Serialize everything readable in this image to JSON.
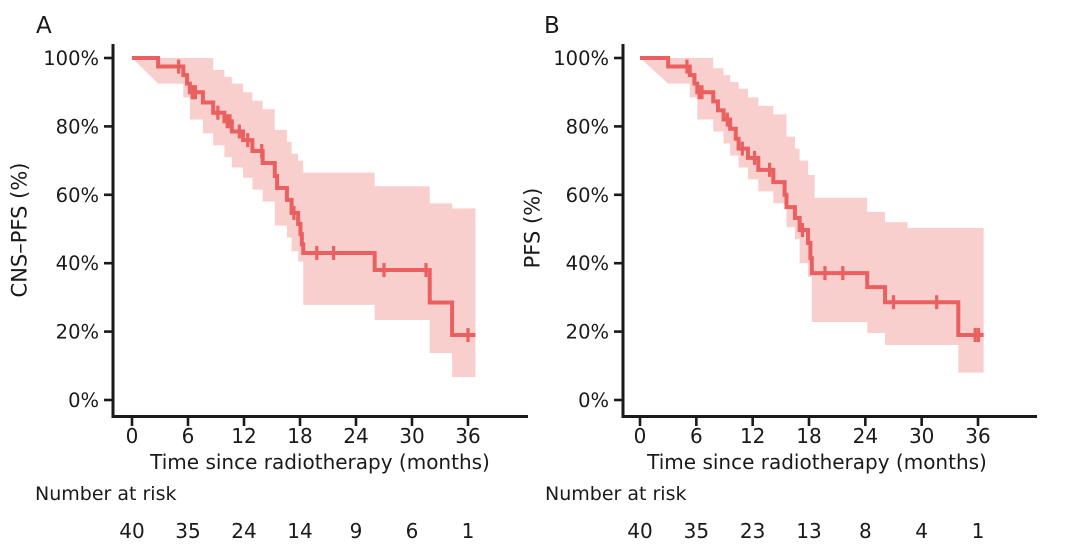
{
  "figure": {
    "background": "#ffffff"
  },
  "colors": {
    "curve": "#ea5f5f",
    "band": "#f9cfcd",
    "axis": "#1a1a1a",
    "text": "#1a1a1a"
  },
  "chart_data": [
    {
      "type": "line",
      "subtype": "kaplan-meier-step-with-confidence-band",
      "panel_label": "A",
      "ylabel": "CNS–PFS (%)",
      "xlabel": "Time since radiotherapy (months)",
      "xticks": [
        0,
        6,
        12,
        18,
        24,
        30,
        36
      ],
      "ytick_values": [
        0,
        20,
        40,
        60,
        80,
        100
      ],
      "ytick_labels": [
        "0%",
        "20%",
        "40%",
        "60%",
        "80%",
        "100%"
      ],
      "xlim": [
        0,
        42
      ],
      "ylim": [
        0,
        100
      ],
      "x_end": 36.8,
      "survival_steps": [
        [
          0,
          100
        ],
        [
          2.8,
          97.5
        ],
        [
          5.5,
          95
        ],
        [
          5.9,
          92.5
        ],
        [
          6.2,
          90
        ],
        [
          7.6,
          87
        ],
        [
          8.7,
          84
        ],
        [
          9.9,
          81.5
        ],
        [
          10.7,
          78.5
        ],
        [
          11.9,
          76
        ],
        [
          12.9,
          72.8
        ],
        [
          14.0,
          69.3
        ],
        [
          15.3,
          65.5
        ],
        [
          15.55,
          62
        ],
        [
          16.6,
          58.5
        ],
        [
          17.1,
          54.7
        ],
        [
          17.8,
          51.5
        ],
        [
          18.05,
          48.5
        ],
        [
          18.2,
          45.5
        ],
        [
          18.35,
          43
        ],
        [
          26.0,
          38
        ],
        [
          31.9,
          28.5
        ],
        [
          34.3,
          19
        ]
      ],
      "censor_marks": [
        [
          5.0,
          97.5
        ],
        [
          6.45,
          90
        ],
        [
          6.62,
          90
        ],
        [
          6.8,
          90
        ],
        [
          9.2,
          84
        ],
        [
          10.2,
          81.5
        ],
        [
          10.5,
          81.5
        ],
        [
          11.5,
          78.5
        ],
        [
          12.4,
          76
        ],
        [
          13.9,
          72.8
        ],
        [
          17.35,
          54.7
        ],
        [
          19.8,
          43
        ],
        [
          21.6,
          43
        ],
        [
          27.0,
          38
        ],
        [
          31.5,
          38
        ],
        [
          36.0,
          19
        ]
      ],
      "ci_upper_steps": [
        [
          0,
          100
        ],
        [
          8.7,
          96.5
        ],
        [
          9.9,
          94.5
        ],
        [
          10.7,
          92.5
        ],
        [
          11.9,
          90
        ],
        [
          12.9,
          87.5
        ],
        [
          14.0,
          85
        ],
        [
          15.3,
          79
        ],
        [
          16.6,
          75.5
        ],
        [
          17.1,
          72
        ],
        [
          17.8,
          70
        ],
        [
          18.35,
          66.5
        ],
        [
          26.0,
          62.5
        ],
        [
          31.9,
          57.5
        ],
        [
          34.3,
          56
        ]
      ],
      "ci_lower_steps": [
        [
          2.8,
          92.5
        ],
        [
          5.5,
          88.5
        ],
        [
          6.2,
          82
        ],
        [
          7.6,
          78
        ],
        [
          8.7,
          74.5
        ],
        [
          9.9,
          71
        ],
        [
          10.7,
          68
        ],
        [
          11.9,
          65
        ],
        [
          12.9,
          61.5
        ],
        [
          14.0,
          58
        ],
        [
          15.3,
          51
        ],
        [
          16.6,
          47.5
        ],
        [
          17.1,
          43.5
        ],
        [
          17.8,
          40.5
        ],
        [
          18.35,
          27.8
        ],
        [
          26.0,
          23.4
        ],
        [
          31.9,
          13.7
        ],
        [
          34.3,
          6.7
        ]
      ],
      "number_at_risk_label": "Number at risk",
      "number_at_risk": {
        "times": [
          0,
          6,
          12,
          18,
          24,
          30,
          36
        ],
        "counts": [
          40,
          35,
          24,
          14,
          9,
          6,
          1
        ]
      }
    },
    {
      "type": "line",
      "subtype": "kaplan-meier-step-with-confidence-band",
      "panel_label": "B",
      "ylabel": "PFS (%)",
      "xlabel": "Time since radiotherapy (months)",
      "xticks": [
        0,
        6,
        12,
        18,
        24,
        30,
        36
      ],
      "ytick_values": [
        0,
        20,
        40,
        60,
        80,
        100
      ],
      "ytick_labels": [
        "0%",
        "20%",
        "40%",
        "60%",
        "80%",
        "100%"
      ],
      "xlim": [
        0,
        42
      ],
      "ylim": [
        0,
        100
      ],
      "x_end": 36.6,
      "survival_steps": [
        [
          0,
          100
        ],
        [
          3.0,
          97.5
        ],
        [
          5.3,
          95
        ],
        [
          5.8,
          92.5
        ],
        [
          6.1,
          90
        ],
        [
          7.8,
          87.3
        ],
        [
          8.3,
          84.7
        ],
        [
          8.9,
          82
        ],
        [
          9.6,
          79.3
        ],
        [
          10.2,
          76.4
        ],
        [
          10.5,
          73.5
        ],
        [
          11.5,
          70.8
        ],
        [
          12.6,
          67.3
        ],
        [
          14.2,
          63.7
        ],
        [
          15.4,
          60
        ],
        [
          15.6,
          56.4
        ],
        [
          16.5,
          53.2
        ],
        [
          17.0,
          49.7
        ],
        [
          17.9,
          45.9
        ],
        [
          18.15,
          41.5
        ],
        [
          18.3,
          37.1
        ],
        [
          24.2,
          33
        ],
        [
          26.1,
          28.6
        ],
        [
          33.9,
          19
        ]
      ],
      "censor_marks": [
        [
          5.0,
          97.5
        ],
        [
          6.3,
          90
        ],
        [
          6.6,
          90
        ],
        [
          9.3,
          82
        ],
        [
          10.9,
          73.5
        ],
        [
          12.2,
          70.8
        ],
        [
          13.8,
          67.3
        ],
        [
          17.3,
          49.7
        ],
        [
          19.7,
          37.1
        ],
        [
          21.6,
          37.1
        ],
        [
          27.0,
          28.6
        ],
        [
          31.6,
          28.6
        ],
        [
          35.7,
          19
        ],
        [
          36.05,
          19
        ]
      ],
      "ci_upper_steps": [
        [
          0,
          100
        ],
        [
          7.8,
          97
        ],
        [
          8.9,
          95
        ],
        [
          9.6,
          93
        ],
        [
          10.5,
          91
        ],
        [
          11.5,
          88.5
        ],
        [
          12.6,
          86
        ],
        [
          14.2,
          83.5
        ],
        [
          15.6,
          77
        ],
        [
          16.5,
          73.5
        ],
        [
          17.0,
          70
        ],
        [
          17.9,
          65.8
        ],
        [
          18.6,
          59.1
        ],
        [
          24.2,
          55
        ],
        [
          26.1,
          52
        ],
        [
          28.5,
          50.3
        ]
      ],
      "ci_lower_steps": [
        [
          3.0,
          92.5
        ],
        [
          5.3,
          88.5
        ],
        [
          6.1,
          82
        ],
        [
          7.8,
          78.5
        ],
        [
          8.9,
          75
        ],
        [
          9.6,
          71.5
        ],
        [
          10.5,
          68
        ],
        [
          11.5,
          64.5
        ],
        [
          12.6,
          61
        ],
        [
          14.2,
          57.5
        ],
        [
          15.6,
          50.5
        ],
        [
          16.5,
          47
        ],
        [
          17.0,
          40
        ],
        [
          17.9,
          36
        ],
        [
          18.3,
          22.8
        ],
        [
          24.2,
          19.6
        ],
        [
          26.1,
          16.1
        ],
        [
          33.9,
          8
        ]
      ],
      "number_at_risk_label": "Number at risk",
      "number_at_risk": {
        "times": [
          0,
          6,
          12,
          18,
          24,
          30,
          36
        ],
        "counts": [
          40,
          35,
          23,
          13,
          8,
          4,
          1
        ]
      }
    }
  ]
}
